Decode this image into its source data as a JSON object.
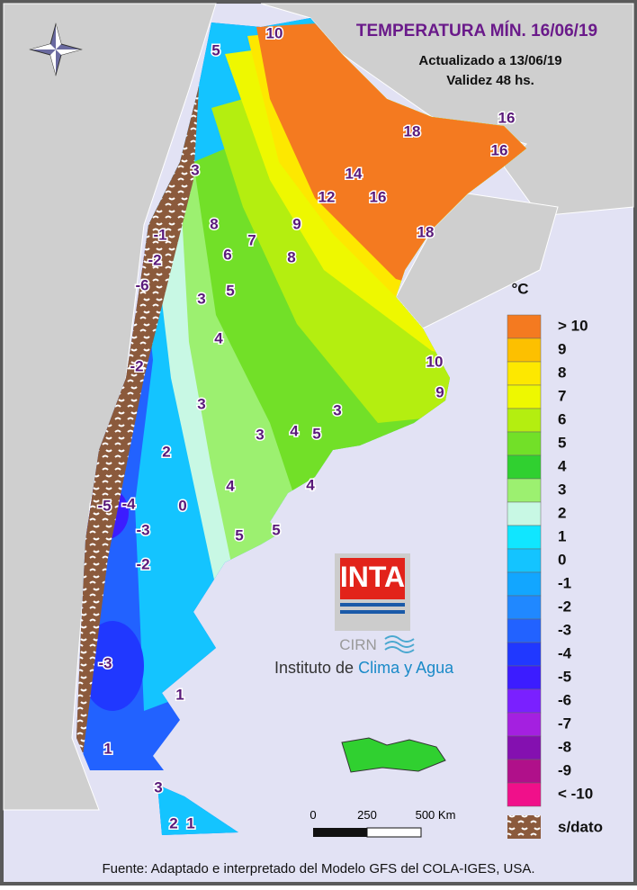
{
  "header": {
    "title": "TEMPERATURA MÍN. 16/06/19",
    "updated": "Actualizado a 13/06/19",
    "validity": "Validez 48 hs."
  },
  "map_labels": [
    10,
    5,
    18,
    16,
    16,
    3,
    14,
    12,
    16,
    8,
    9,
    18,
    7,
    -1,
    6,
    8,
    -2,
    -6,
    3,
    5,
    4,
    10,
    -2,
    9,
    3,
    3,
    3,
    4,
    5,
    2,
    4,
    4,
    -5,
    -4,
    0,
    -3,
    5,
    5,
    -2,
    -3,
    1,
    1,
    3,
    2,
    1
  ],
  "legend": {
    "unit": "°C",
    "items": [
      {
        "label": "> 10",
        "color": "#f47a20"
      },
      {
        "label": "9",
        "color": "#fdc000"
      },
      {
        "label": "8",
        "color": "#fde800"
      },
      {
        "label": "7",
        "color": "#eef800"
      },
      {
        "label": "6",
        "color": "#b4ee10"
      },
      {
        "label": "5",
        "color": "#72e028"
      },
      {
        "label": "4",
        "color": "#30d030"
      },
      {
        "label": "3",
        "color": "#9cf070"
      },
      {
        "label": "2",
        "color": "#c8f8e4"
      },
      {
        "label": "1",
        "color": "#10e6ff"
      },
      {
        "label": "0",
        "color": "#14c4ff"
      },
      {
        "label": "-1",
        "color": "#12a6ff"
      },
      {
        "label": "-2",
        "color": "#2088ff"
      },
      {
        "label": "-3",
        "color": "#2262ff"
      },
      {
        "label": "-4",
        "color": "#2038ff"
      },
      {
        "label": "-5",
        "color": "#3c1cff"
      },
      {
        "label": "-6",
        "color": "#7a20ff"
      },
      {
        "label": "-7",
        "color": "#a420e0"
      },
      {
        "label": "-8",
        "color": "#8410b0"
      },
      {
        "label": "-9",
        "color": "#b0108a"
      },
      {
        "label": "< -10",
        "color": "#f0108a"
      }
    ],
    "no_data": "s/dato"
  },
  "scale": {
    "labels": [
      "0",
      "250",
      "500 Km"
    ]
  },
  "logo": {
    "brand": "INTA",
    "center": "CIRN",
    "institute": "Instituto de",
    "institute_highlight": "Clima y Agua"
  },
  "footer": "Fuente: Adaptado e interpretado del Modelo GFS del COLA-IGES, USA."
}
